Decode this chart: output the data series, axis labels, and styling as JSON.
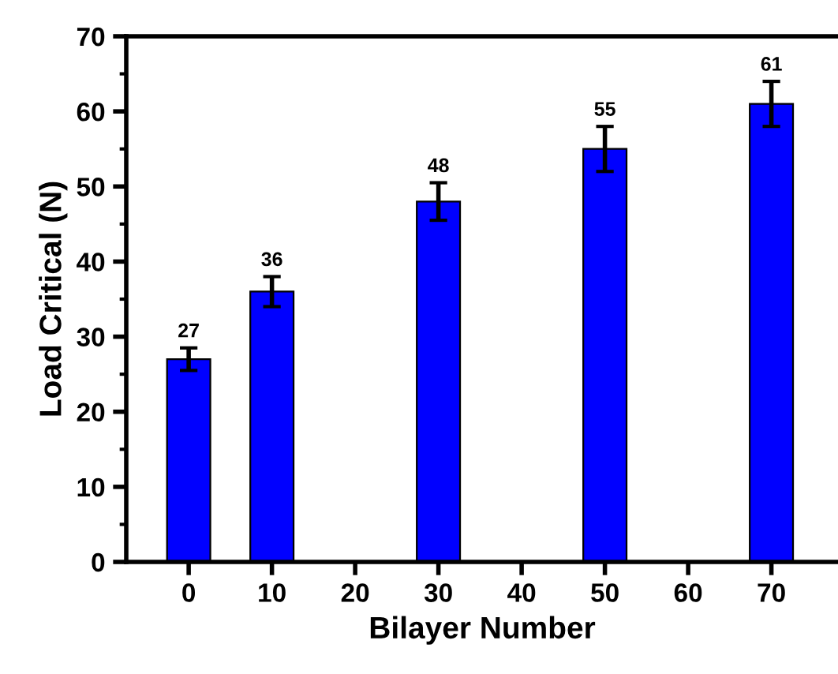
{
  "chart_data": {
    "type": "bar",
    "xlabel": "Bilayer Number",
    "ylabel": "Load Critical (N)",
    "x": [
      0,
      10,
      30,
      50,
      70
    ],
    "values": [
      27,
      36,
      48,
      55,
      61
    ],
    "errors": [
      1.5,
      2,
      2.5,
      3,
      3
    ],
    "color": "#0000ff",
    "data_labels": true,
    "xlim": [
      -7.5,
      78
    ],
    "xticks": [
      0,
      10,
      20,
      30,
      40,
      50,
      60,
      70
    ],
    "ylim": [
      0,
      70
    ],
    "yticks": [
      0,
      10,
      20,
      30,
      40,
      50,
      60,
      70
    ],
    "grid": false,
    "legend": false
  }
}
